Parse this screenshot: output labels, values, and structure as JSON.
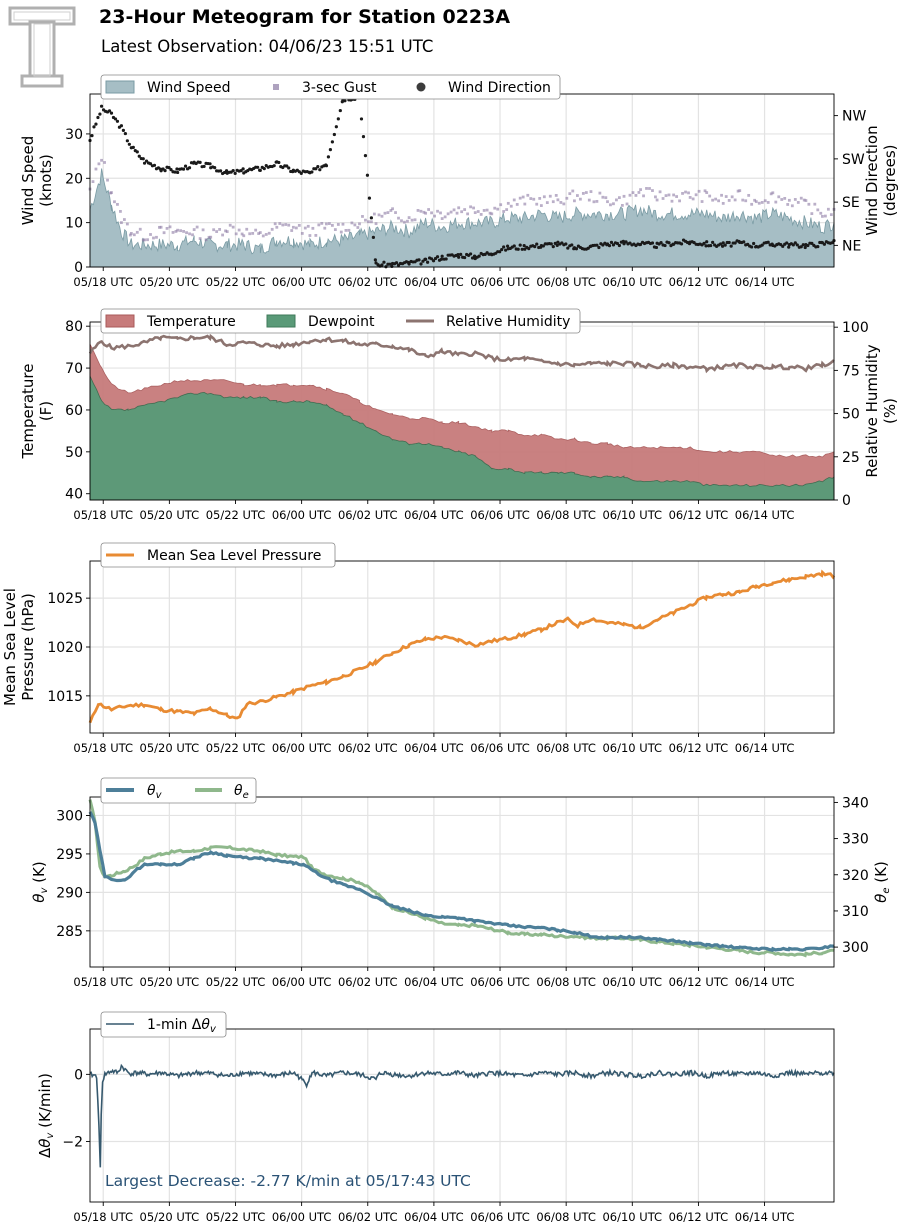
{
  "header": {
    "title": "23-Hour Meteogram for Station 0223A",
    "subtitle": "Latest Observation: 04/06/23 15:51 UTC",
    "logo_text": "T"
  },
  "x_axis": {
    "tick_labels": [
      "05/18 UTC",
      "05/20 UTC",
      "05/22 UTC",
      "06/00 UTC",
      "06/02 UTC",
      "06/04 UTC",
      "06/06 UTC",
      "06/08 UTC",
      "06/10 UTC",
      "06/12 UTC",
      "06/14 UTC"
    ],
    "tick_hours": [
      0.25,
      2.25,
      4.25,
      6.25,
      8.25,
      10.25,
      12.25,
      14.25,
      16.25,
      18.25,
      20.25
    ],
    "range_hours": [
      -0.15,
      22.35
    ]
  },
  "colors": {
    "wind_fill": "#a6bec5",
    "wind_line": "#7a9ba4",
    "gust": "#8c7aa4",
    "direction": "#1a1a1a",
    "temp": "#c77b7b",
    "dewpoint": "#5a9a78",
    "rh": "#8c7470",
    "pressure": "#e88b33",
    "theta_v": "#4d7f99",
    "theta_e": "#8fb88c",
    "dtheta": "#36596e",
    "annotation": "#2a5275"
  },
  "chart_data": [
    {
      "type": "area",
      "id": "wind",
      "ylabel": "Wind Speed\n(knots)",
      "ylabel_lines": [
        "Wind Speed",
        "(knots)"
      ],
      "ylabel2_lines": [
        "Wind Direction",
        "(degrees)"
      ],
      "ylim": [
        0,
        39
      ],
      "yticks": [
        0,
        10,
        20,
        30
      ],
      "y2_ticks": [
        "NW",
        "SW",
        "SE",
        "NE"
      ],
      "y2_tick_values": [
        315,
        225,
        135,
        45
      ],
      "y2lim": [
        0,
        360
      ],
      "legend": [
        "Wind Speed",
        "3-sec Gust",
        "Wind Direction"
      ],
      "grid": true,
      "x": [
        -0.15,
        0.2,
        0.5,
        0.8,
        1.1,
        1.5,
        2,
        2.5,
        3,
        3.5,
        4,
        4.5,
        5,
        5.5,
        6,
        6.5,
        7,
        7.5,
        8,
        8.5,
        9,
        9.5,
        10,
        10.5,
        11,
        11.5,
        12,
        12.5,
        13,
        13.5,
        14,
        14.5,
        15,
        15.5,
        16,
        16.5,
        17,
        17.5,
        18,
        18.5,
        19,
        19.5,
        20,
        20.5,
        21,
        21.5,
        22,
        22.35
      ],
      "series": [
        {
          "name": "Wind Speed",
          "values": [
            13,
            21,
            14,
            8,
            5,
            5,
            5,
            5,
            6,
            5,
            5,
            5,
            4,
            6,
            6,
            5,
            6,
            6,
            7,
            8,
            9,
            8,
            10,
            9,
            10,
            10,
            10,
            11,
            11,
            12,
            11,
            12,
            12,
            12,
            12,
            13,
            12,
            12,
            12,
            12,
            11,
            12,
            11,
            12,
            11,
            10,
            9,
            10
          ]
        },
        {
          "name": "3-sec Gust",
          "values": [
            17,
            25,
            17,
            11,
            8,
            7,
            8,
            8,
            8,
            7,
            9,
            8,
            7,
            9,
            9,
            8,
            9,
            9,
            10,
            11,
            12,
            11,
            13,
            12,
            13,
            13,
            13,
            14,
            15,
            15,
            15,
            16,
            16,
            15,
            15,
            17,
            16,
            16,
            16,
            16,
            15,
            16,
            15,
            16,
            15,
            14,
            12,
            13
          ]
        },
        {
          "name": "Wind Direction",
          "values": [
            265,
            330,
            318,
            290,
            250,
            220,
            205,
            200,
            215,
            210,
            195,
            200,
            205,
            215,
            200,
            195,
            215,
            350,
            355,
            5,
            5,
            8,
            12,
            20,
            25,
            22,
            30,
            40,
            42,
            45,
            48,
            40,
            42,
            48,
            50,
            48,
            45,
            50,
            52,
            48,
            46,
            50,
            45,
            48,
            46,
            45,
            48,
            55
          ]
        }
      ]
    },
    {
      "type": "area",
      "id": "temperature",
      "ylabel_lines": [
        "Temperature",
        "(F)"
      ],
      "ylabel2_lines": [
        "Relative Humidity",
        "(%)"
      ],
      "ylim": [
        38.5,
        81
      ],
      "yticks": [
        40,
        50,
        60,
        70,
        80
      ],
      "y2lim": [
        0,
        103
      ],
      "y2ticks": [
        0,
        25,
        50,
        75,
        100
      ],
      "legend": [
        "Temperature",
        "Dewpoint",
        "Relative Humidity"
      ],
      "grid": true,
      "x": [
        -0.15,
        0.2,
        0.5,
        1,
        1.5,
        2,
        2.5,
        3,
        3.5,
        4,
        4.5,
        5,
        5.5,
        6,
        6.5,
        7,
        7.5,
        8,
        8.5,
        9,
        9.5,
        10,
        10.5,
        11,
        11.5,
        12,
        12.5,
        13,
        13.5,
        14,
        14.5,
        15,
        15.5,
        16,
        16.5,
        17,
        17.5,
        18,
        18.5,
        19,
        19.5,
        20,
        20.5,
        21,
        21.5,
        22,
        22.35
      ],
      "series": [
        {
          "name": "Temperature",
          "values": [
            76,
            70,
            66,
            64,
            65,
            66,
            67,
            67,
            67,
            67,
            66,
            66,
            66,
            66,
            66,
            65,
            64,
            62,
            60,
            59,
            58,
            58,
            57,
            57,
            56,
            55,
            55,
            54,
            54,
            53,
            53,
            52,
            52,
            51,
            51,
            51,
            51,
            51,
            50,
            50,
            50,
            50,
            49,
            49,
            49,
            49,
            50
          ]
        },
        {
          "name": "Dewpoint",
          "values": [
            68,
            62,
            60,
            60,
            61,
            62,
            63,
            64,
            64,
            63,
            63,
            63,
            62,
            62,
            62,
            61,
            59,
            57,
            55,
            53,
            52,
            52,
            51,
            50,
            49,
            46,
            46,
            45,
            45,
            45,
            45,
            44,
            44,
            44,
            43,
            43,
            43,
            43,
            42,
            42,
            42,
            42,
            42,
            42,
            42,
            43,
            44
          ]
        },
        {
          "name": "Relative Humidity",
          "values": [
            85,
            92,
            88,
            89,
            91,
            94,
            93,
            94,
            94,
            90,
            91,
            90,
            89,
            90,
            92,
            93,
            92,
            90,
            90,
            89,
            87,
            83,
            86,
            84,
            85,
            82,
            81,
            82,
            80,
            79,
            78,
            79,
            79,
            79,
            78,
            77,
            78,
            77,
            76,
            77,
            78,
            77,
            77,
            77,
            76,
            78,
            80
          ]
        }
      ]
    },
    {
      "type": "line",
      "id": "pressure",
      "ylabel_lines": [
        "Mean Sea Level",
        "Pressure (hPa)"
      ],
      "ylim": [
        1011.2,
        1028.8
      ],
      "yticks": [
        1015,
        1020,
        1025
      ],
      "legend": [
        "Mean Sea Level Pressure"
      ],
      "grid": true,
      "x": [
        -0.15,
        0.1,
        0.5,
        1,
        1.5,
        2,
        2.5,
        3,
        3.5,
        4,
        4.3,
        4.6,
        5,
        5.5,
        6,
        6.5,
        7,
        7.5,
        8,
        8.5,
        9,
        9.5,
        10,
        10.5,
        11,
        11.5,
        12,
        12.5,
        13,
        13.5,
        14,
        14.3,
        14.6,
        15,
        15.5,
        16,
        16.5,
        17,
        17.5,
        18,
        18.5,
        19,
        19.5,
        20,
        20.5,
        21,
        21.5,
        22,
        22.35
      ],
      "series": [
        {
          "name": "Mean Sea Level Pressure",
          "values": [
            1012.2,
            1014.2,
            1013.6,
            1014,
            1014.1,
            1013.6,
            1013.4,
            1013.2,
            1013.7,
            1013,
            1012.6,
            1014.2,
            1014.4,
            1014.9,
            1015.4,
            1016,
            1016.4,
            1017,
            1017.7,
            1018.5,
            1019.4,
            1020.2,
            1020.8,
            1021,
            1020.7,
            1020.2,
            1020.6,
            1020.9,
            1021.3,
            1021.8,
            1022.5,
            1022.8,
            1022.2,
            1022.9,
            1022.5,
            1022.3,
            1022,
            1022.8,
            1023.5,
            1024.3,
            1025.1,
            1025.4,
            1025.6,
            1026.2,
            1026.6,
            1026.9,
            1027.2,
            1027.5,
            1027.3
          ]
        }
      ]
    },
    {
      "type": "line",
      "id": "theta",
      "ylabel": "θv (K)",
      "ylabel2": "θe (K)",
      "ylim": [
        280.3,
        302.4
      ],
      "yticks": [
        285,
        290,
        295,
        300
      ],
      "y2lim": [
        294.5,
        341.5
      ],
      "y2ticks": [
        300,
        310,
        320,
        330,
        340
      ],
      "legend": [
        "θv",
        "θe"
      ],
      "grid": true,
      "x": [
        -0.15,
        0,
        0.15,
        0.3,
        0.5,
        0.7,
        0.9,
        1.2,
        1.5,
        2,
        2.5,
        3,
        3.5,
        4,
        4.5,
        5,
        5.5,
        6,
        6.3,
        6.6,
        7,
        7.5,
        8,
        8.5,
        9,
        9.5,
        10,
        10.5,
        11,
        11.5,
        12,
        12.5,
        13,
        13.5,
        14,
        14.5,
        15,
        15.5,
        16,
        16.5,
        17,
        17.5,
        18,
        18.5,
        19,
        19.5,
        20,
        20.5,
        21,
        21.5,
        22,
        22.35
      ],
      "series": [
        {
          "name": "θv",
          "values": [
            300.5,
            299,
            295.5,
            292,
            291.8,
            291.6,
            291.5,
            292.8,
            293.6,
            293.7,
            293.6,
            294.5,
            295.2,
            294.8,
            294.5,
            294.4,
            294.1,
            293.8,
            293.6,
            292.8,
            291.8,
            291,
            290.4,
            289.3,
            288.2,
            287.6,
            287,
            286.8,
            286.7,
            286.3,
            286,
            285.7,
            285.5,
            285.4,
            285.1,
            284.8,
            284.3,
            284.1,
            284.2,
            284.1,
            283.9,
            283.7,
            283.4,
            283.2,
            283,
            282.8,
            282.7,
            282.6,
            282.6,
            282.6,
            282.8,
            283.1
          ]
        },
        {
          "name": "θe",
          "values": [
            340.5,
            335,
            322,
            319.5,
            319.8,
            320.5,
            321,
            322.5,
            324.5,
            325.8,
            326.5,
            326.5,
            327.5,
            327.5,
            327,
            326.5,
            325.5,
            325,
            325,
            321.5,
            320,
            319,
            318,
            315,
            311,
            309.5,
            308,
            306.5,
            306,
            306,
            305,
            304,
            303.5,
            303.5,
            303,
            303,
            302.5,
            302.5,
            302.5,
            302,
            301.5,
            301,
            300.5,
            300,
            299.5,
            299,
            298.5,
            298.5,
            298,
            298,
            298.5,
            299
          ]
        }
      ]
    },
    {
      "type": "line",
      "id": "dtheta",
      "ylabel": "Δθv (K/min)",
      "ylim": [
        -3.8,
        1.35
      ],
      "yticks": [
        -2,
        0
      ],
      "legend": [
        "1-min Δθv"
      ],
      "annotation": "Largest Decrease: -2.77 K/min at 05/17:43 UTC",
      "grid": true,
      "x": [
        -0.15,
        0.05,
        0.12,
        0.16,
        0.19,
        0.23,
        0.3,
        0.5,
        0.7,
        0.8,
        0.95,
        1.05,
        1.3,
        1.6,
        2,
        2.5,
        3,
        3.5,
        4,
        4.5,
        5,
        5.5,
        6,
        6.2,
        6.4,
        6.5,
        6.6,
        6.8,
        7,
        7.5,
        8,
        8.5,
        8.6,
        8.7,
        9,
        9.5,
        10,
        10.5,
        11,
        11.5,
        12,
        12.5,
        13,
        13.5,
        14,
        14.5,
        15,
        15.5,
        16,
        16.5,
        17,
        17.5,
        18,
        18.5,
        19,
        19.5,
        20,
        20.5,
        21,
        21.5,
        22,
        22.35
      ],
      "series": [
        {
          "name": "1-min Δθv",
          "values": [
            0,
            -0.05,
            -1.5,
            -2.77,
            -1.2,
            -0.2,
            0,
            0.1,
            0.05,
            0.25,
            0.1,
            0.02,
            0.05,
            0,
            0.05,
            -0.05,
            0.05,
            0.03,
            -0.05,
            0.05,
            0,
            -0.03,
            0.05,
            -0.1,
            -0.3,
            -0.05,
            0.05,
            0,
            -0.05,
            0.05,
            0,
            -0.15,
            0,
            0.05,
            0,
            -0.05,
            0.05,
            0,
            0.05,
            -0.05,
            0.05,
            0,
            -0.05,
            0.05,
            0,
            0.05,
            -0.05,
            0.05,
            0,
            -0.05,
            0.05,
            0,
            0.05,
            -0.05,
            0.05,
            0,
            0.05,
            -0.05,
            0.05,
            0,
            0.05,
            0.05
          ]
        }
      ]
    }
  ]
}
